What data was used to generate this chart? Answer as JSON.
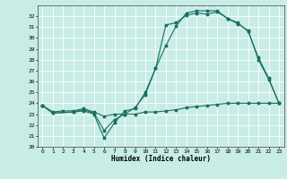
{
  "title": "",
  "xlabel": "Humidex (Indice chaleur)",
  "xlim": [
    -0.5,
    23.5
  ],
  "ylim": [
    20,
    33
  ],
  "yticks": [
    20,
    21,
    22,
    23,
    24,
    25,
    26,
    27,
    28,
    29,
    30,
    31,
    32
  ],
  "xticks": [
    0,
    1,
    2,
    3,
    4,
    5,
    6,
    7,
    8,
    9,
    10,
    11,
    12,
    13,
    14,
    15,
    16,
    17,
    18,
    19,
    20,
    21,
    22,
    23
  ],
  "bg_color": "#c8ece6",
  "grid_color": "#ffffff",
  "line_color": "#1a6e62",
  "line1_x": [
    0,
    1,
    2,
    3,
    4,
    5,
    6,
    7,
    8,
    9,
    10,
    11,
    12,
    13,
    14,
    15,
    16,
    17,
    18,
    19,
    20,
    21,
    22,
    23
  ],
  "line1_y": [
    23.8,
    23.2,
    23.3,
    23.3,
    23.5,
    23.2,
    22.8,
    23.0,
    23.0,
    23.0,
    23.2,
    23.2,
    23.3,
    23.4,
    23.6,
    23.7,
    23.8,
    23.9,
    24.0,
    24.0,
    24.0,
    24.0,
    24.0,
    24.0
  ],
  "line2_x": [
    0,
    1,
    3,
    4,
    5,
    6,
    7,
    8,
    9,
    10,
    11,
    12,
    13,
    14,
    15,
    16,
    17,
    18,
    19,
    20,
    21,
    22,
    23
  ],
  "line2_y": [
    23.8,
    23.1,
    23.2,
    23.3,
    23.0,
    20.8,
    22.2,
    23.3,
    23.5,
    25.0,
    27.2,
    31.2,
    31.4,
    32.1,
    32.3,
    32.2,
    32.4,
    31.8,
    31.4,
    30.6,
    28.2,
    26.3,
    24.0
  ],
  "line3_x": [
    0,
    1,
    3,
    4,
    5,
    6,
    7,
    8,
    9,
    10,
    11,
    12,
    13,
    14,
    15,
    16,
    17,
    18,
    19,
    20,
    21,
    22,
    23
  ],
  "line3_y": [
    23.8,
    23.1,
    23.2,
    23.4,
    23.1,
    21.5,
    22.5,
    23.0,
    23.6,
    24.8,
    27.2,
    29.3,
    31.1,
    32.3,
    32.5,
    32.5,
    32.5,
    31.8,
    31.3,
    30.7,
    28.0,
    26.2,
    24.0
  ]
}
